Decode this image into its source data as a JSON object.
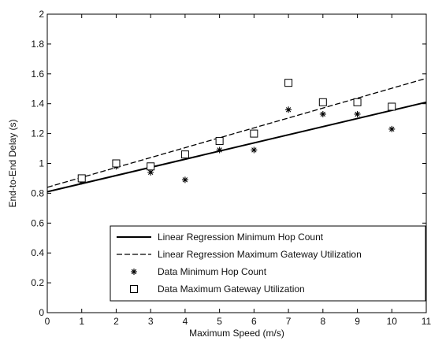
{
  "chart_data": {
    "type": "scatter",
    "title": "",
    "xlabel": "Maximum Speed (m/s)",
    "ylabel": "End-to-End Delay (s)",
    "xlim": [
      0,
      11
    ],
    "ylim": [
      0,
      2
    ],
    "xticks": [
      0,
      1,
      2,
      3,
      4,
      5,
      6,
      7,
      8,
      9,
      10,
      11
    ],
    "yticks": [
      0,
      0.2,
      0.4,
      0.6,
      0.8,
      1,
      1.2,
      1.4,
      1.6,
      1.8,
      2
    ],
    "ytick_labels": [
      "0",
      "0.2",
      "0.4",
      "0.6",
      "0.8",
      "1",
      "1.2",
      "1.4",
      "1.6",
      "1.8",
      "2"
    ],
    "grid": false,
    "legend_position": "bottom-right",
    "series": [
      {
        "name": "Linear Regression Minimum Hop Count",
        "kind": "line",
        "style": "solid",
        "x": [
          0,
          11
        ],
        "y": [
          0.81,
          1.41
        ]
      },
      {
        "name": "Linear Regression Maximum Gateway Utilization",
        "kind": "line",
        "style": "dashed",
        "x": [
          0,
          11
        ],
        "y": [
          0.84,
          1.57
        ]
      },
      {
        "name": "Data Minimum Hop Count",
        "kind": "scatter",
        "marker": "star",
        "x": [
          1,
          2,
          3,
          4,
          5,
          6,
          7,
          8,
          9,
          10
        ],
        "y": [
          0.88,
          0.98,
          0.94,
          0.89,
          1.09,
          1.09,
          1.36,
          1.33,
          1.33,
          1.23
        ]
      },
      {
        "name": "Data Maximum Gateway Utilization",
        "kind": "scatter",
        "marker": "square",
        "x": [
          1,
          2,
          3,
          4,
          5,
          6,
          7,
          8,
          9,
          10
        ],
        "y": [
          0.9,
          1.0,
          0.98,
          1.06,
          1.15,
          1.2,
          1.54,
          1.41,
          1.41,
          1.38
        ]
      }
    ]
  }
}
